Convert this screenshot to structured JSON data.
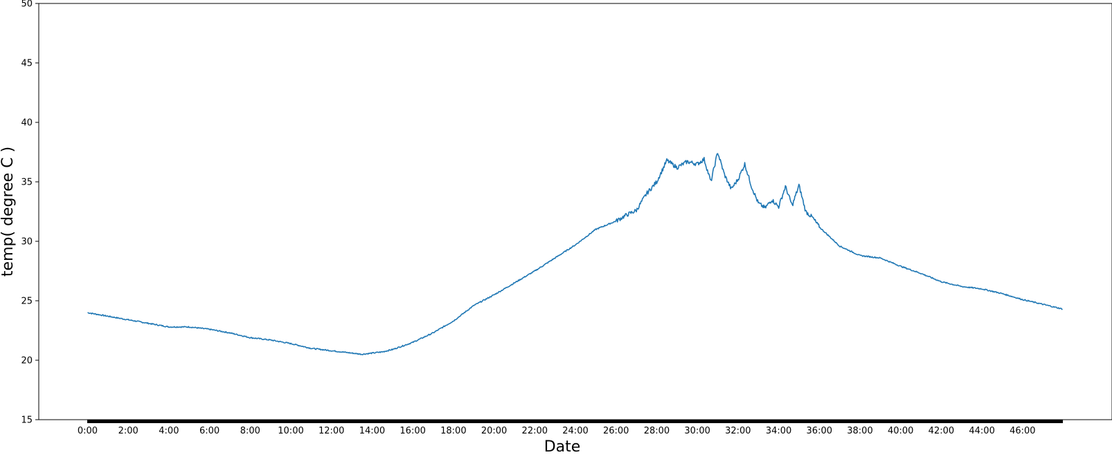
{
  "chart_data": {
    "type": "line",
    "title": "",
    "xlabel": "Date",
    "ylabel": "temp( degree C )",
    "ylim": [
      15,
      50
    ],
    "xlim_hours": [
      -2.4,
      50.4
    ],
    "yticks": [
      15,
      20,
      25,
      30,
      35,
      40,
      45,
      50
    ],
    "xtick_labels": [
      "0:00",
      "2:00",
      "4:00",
      "6:00",
      "8:00",
      "10:00",
      "12:00",
      "14:00",
      "16:00",
      "18:00",
      "20:00",
      "22:00",
      "24:00",
      "26:00",
      "28:00",
      "30:00",
      "32:00",
      "34:00",
      "36:00",
      "38:00",
      "40:00",
      "42:00",
      "44:00",
      "46:00"
    ],
    "grid": false,
    "legend": "none",
    "line_color": "#1f77b4",
    "series": [
      {
        "x": [
          "0:00",
          "1:00",
          "2:00",
          "3:00",
          "4:00",
          "5:00",
          "6:00",
          "7:00",
          "8:00",
          "9:00",
          "10:00",
          "11:00",
          "12:00",
          "12:30",
          "13:00",
          "13:30",
          "14:00",
          "14:30",
          "15:00",
          "16:00",
          "17:00",
          "18:00",
          "19:00",
          "20:00",
          "21:00",
          "22:00",
          "23:00",
          "24:00",
          "25:00",
          "26:00",
          "26:30",
          "27:00",
          "27:30",
          "28:00",
          "28:30",
          "29:00",
          "29:30",
          "30:00",
          "30:20",
          "30:40",
          "31:00",
          "31:20",
          "31:40",
          "32:00",
          "32:20",
          "32:40",
          "33:00",
          "33:20",
          "33:40",
          "34:00",
          "34:20",
          "34:40",
          "35:00",
          "35:20",
          "35:40",
          "36:00",
          "37:00",
          "38:00",
          "39:00",
          "40:00",
          "41:00",
          "42:00",
          "43:00",
          "44:00",
          "45:00",
          "46:00",
          "47:00",
          "47:59"
        ],
        "values": [
          24.0,
          23.7,
          23.4,
          23.1,
          22.8,
          22.8,
          22.6,
          22.3,
          21.9,
          21.7,
          21.4,
          21.0,
          20.8,
          20.7,
          20.6,
          20.5,
          20.6,
          20.7,
          20.9,
          21.5,
          22.3,
          23.3,
          24.6,
          25.5,
          26.5,
          27.5,
          28.6,
          29.7,
          31.0,
          31.7,
          32.2,
          32.6,
          34.0,
          35.0,
          36.8,
          36.2,
          36.7,
          36.5,
          36.9,
          35.0,
          37.5,
          35.6,
          34.4,
          35.2,
          36.5,
          34.6,
          33.2,
          32.8,
          33.5,
          32.9,
          34.6,
          33.0,
          34.7,
          32.5,
          32.0,
          31.2,
          29.6,
          28.8,
          28.6,
          27.9,
          27.3,
          26.6,
          26.2,
          26.0,
          25.6,
          25.1,
          24.7,
          24.3
        ]
      }
    ]
  }
}
